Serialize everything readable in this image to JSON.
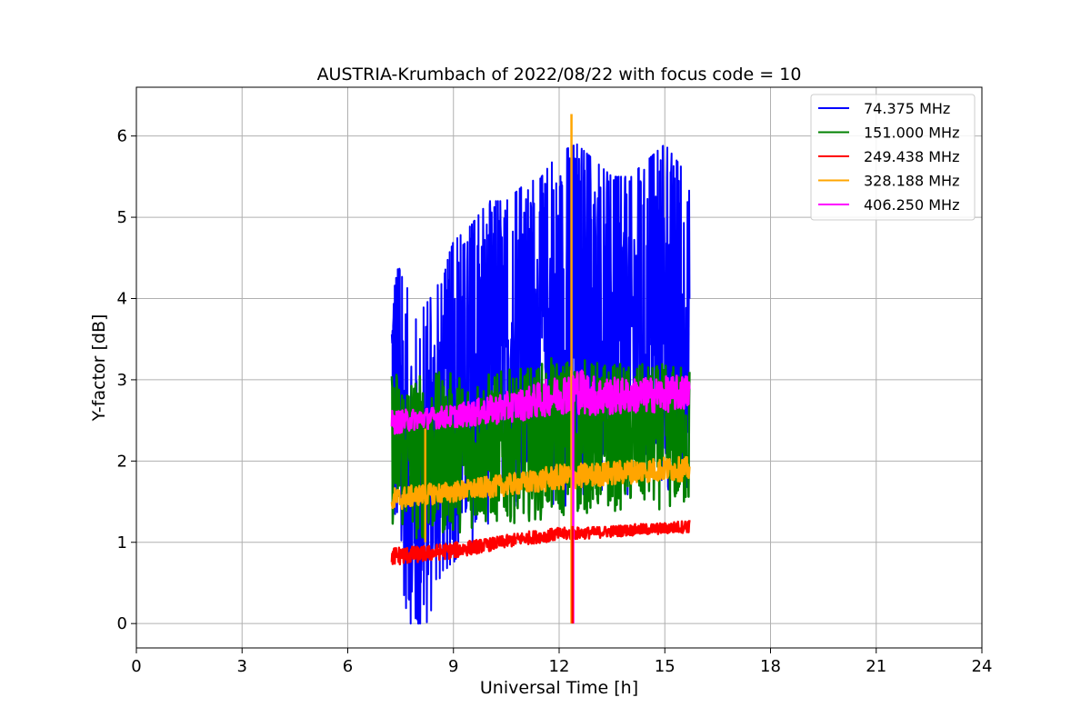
{
  "chart_data": {
    "type": "line",
    "title": "AUSTRIA-Krumbach of 2022/08/22 with focus code = 10",
    "xlabel": "Universal Time [h]",
    "ylabel": "Y-factor [dB]",
    "xlim": [
      0,
      24
    ],
    "ylim": [
      -0.3,
      6.6
    ],
    "xticks": [
      0,
      3,
      6,
      9,
      12,
      15,
      18,
      21,
      24
    ],
    "xtick_labels": [
      "0",
      "3",
      "6",
      "9",
      "12",
      "15",
      "18",
      "21",
      "24"
    ],
    "yticks": [
      0,
      1,
      2,
      3,
      4,
      5,
      6
    ],
    "ytick_labels": [
      "0",
      "1",
      "2",
      "3",
      "4",
      "5",
      "6"
    ],
    "grid": true,
    "legend_position": "top-right",
    "series": [
      {
        "name": " 74.375 MHz",
        "color": "#0000ff",
        "x": [
          7.25,
          7.5,
          7.75,
          8.0,
          8.5,
          9.0,
          9.5,
          10.0,
          10.5,
          11.0,
          11.5,
          12.0,
          12.5,
          13.0,
          13.5,
          14.0,
          14.5,
          15.0,
          15.5,
          15.7
        ],
        "y": [
          3.0,
          2.4,
          2.0,
          1.6,
          2.2,
          2.7,
          2.9,
          3.2,
          3.3,
          3.4,
          3.5,
          3.6,
          3.7,
          3.6,
          3.6,
          3.5,
          3.6,
          3.7,
          3.6,
          3.5
        ],
        "spread": [
          1.8,
          1.9,
          2.1,
          2.2,
          1.9,
          2.0,
          2.0,
          2.0,
          1.9,
          2.0,
          2.0,
          2.2,
          2.2,
          2.1,
          1.9,
          2.0,
          2.1,
          2.2,
          2.0,
          1.9
        ]
      },
      {
        "name": "151.000 MHz",
        "color": "#008000",
        "x": [
          7.25,
          8.0,
          9.0,
          10.0,
          11.0,
          12.0,
          13.0,
          14.0,
          15.0,
          15.7
        ],
        "y": [
          2.2,
          2.05,
          2.1,
          2.15,
          2.2,
          2.3,
          2.3,
          2.3,
          2.3,
          2.3
        ],
        "spread": [
          1.0,
          1.05,
          1.0,
          0.95,
          0.95,
          1.0,
          0.95,
          0.9,
          0.9,
          0.9
        ]
      },
      {
        "name": "249.438 MHz",
        "color": "#ff0000",
        "x": [
          7.25,
          8.0,
          9.0,
          10.0,
          11.0,
          12.0,
          13.0,
          14.0,
          15.0,
          15.7
        ],
        "y": [
          0.83,
          0.85,
          0.9,
          0.97,
          1.05,
          1.1,
          1.12,
          1.15,
          1.17,
          1.2
        ],
        "spread": [
          0.12,
          0.1,
          0.1,
          0.08,
          0.08,
          0.08,
          0.07,
          0.07,
          0.07,
          0.08
        ]
      },
      {
        "name": "328.188 MHz",
        "color": "#ffa500",
        "x": [
          7.25,
          8.0,
          9.0,
          10.0,
          11.0,
          12.0,
          13.0,
          14.0,
          15.0,
          15.7
        ],
        "y": [
          1.52,
          1.58,
          1.62,
          1.68,
          1.73,
          1.8,
          1.83,
          1.87,
          1.9,
          1.9
        ],
        "spread": [
          0.15,
          0.13,
          0.13,
          0.13,
          0.14,
          0.16,
          0.15,
          0.15,
          0.15,
          0.15
        ]
      },
      {
        "name": "406.250 MHz",
        "color": "#ff00ff",
        "x": [
          7.25,
          8.0,
          9.0,
          10.0,
          11.0,
          12.0,
          12.5,
          13.0,
          14.0,
          15.0,
          15.7
        ],
        "y": [
          2.47,
          2.52,
          2.55,
          2.62,
          2.7,
          2.82,
          2.88,
          2.8,
          2.8,
          2.82,
          2.85
        ],
        "spread": [
          0.15,
          0.13,
          0.14,
          0.18,
          0.2,
          0.24,
          0.3,
          0.25,
          0.22,
          0.22,
          0.22
        ]
      }
    ],
    "spikes": [
      {
        "series": 3,
        "x": 12.35,
        "y_min": 0.0,
        "y_max": 6.27
      },
      {
        "series": 3,
        "x": 8.2,
        "y_min": 1.0,
        "y_max": 2.4
      },
      {
        "series": 4,
        "x": 12.4,
        "y_min": 0.0,
        "y_max": 3.05
      },
      {
        "series": 2,
        "x": 12.38,
        "y_min": 0.0,
        "y_max": 1.2
      }
    ]
  }
}
